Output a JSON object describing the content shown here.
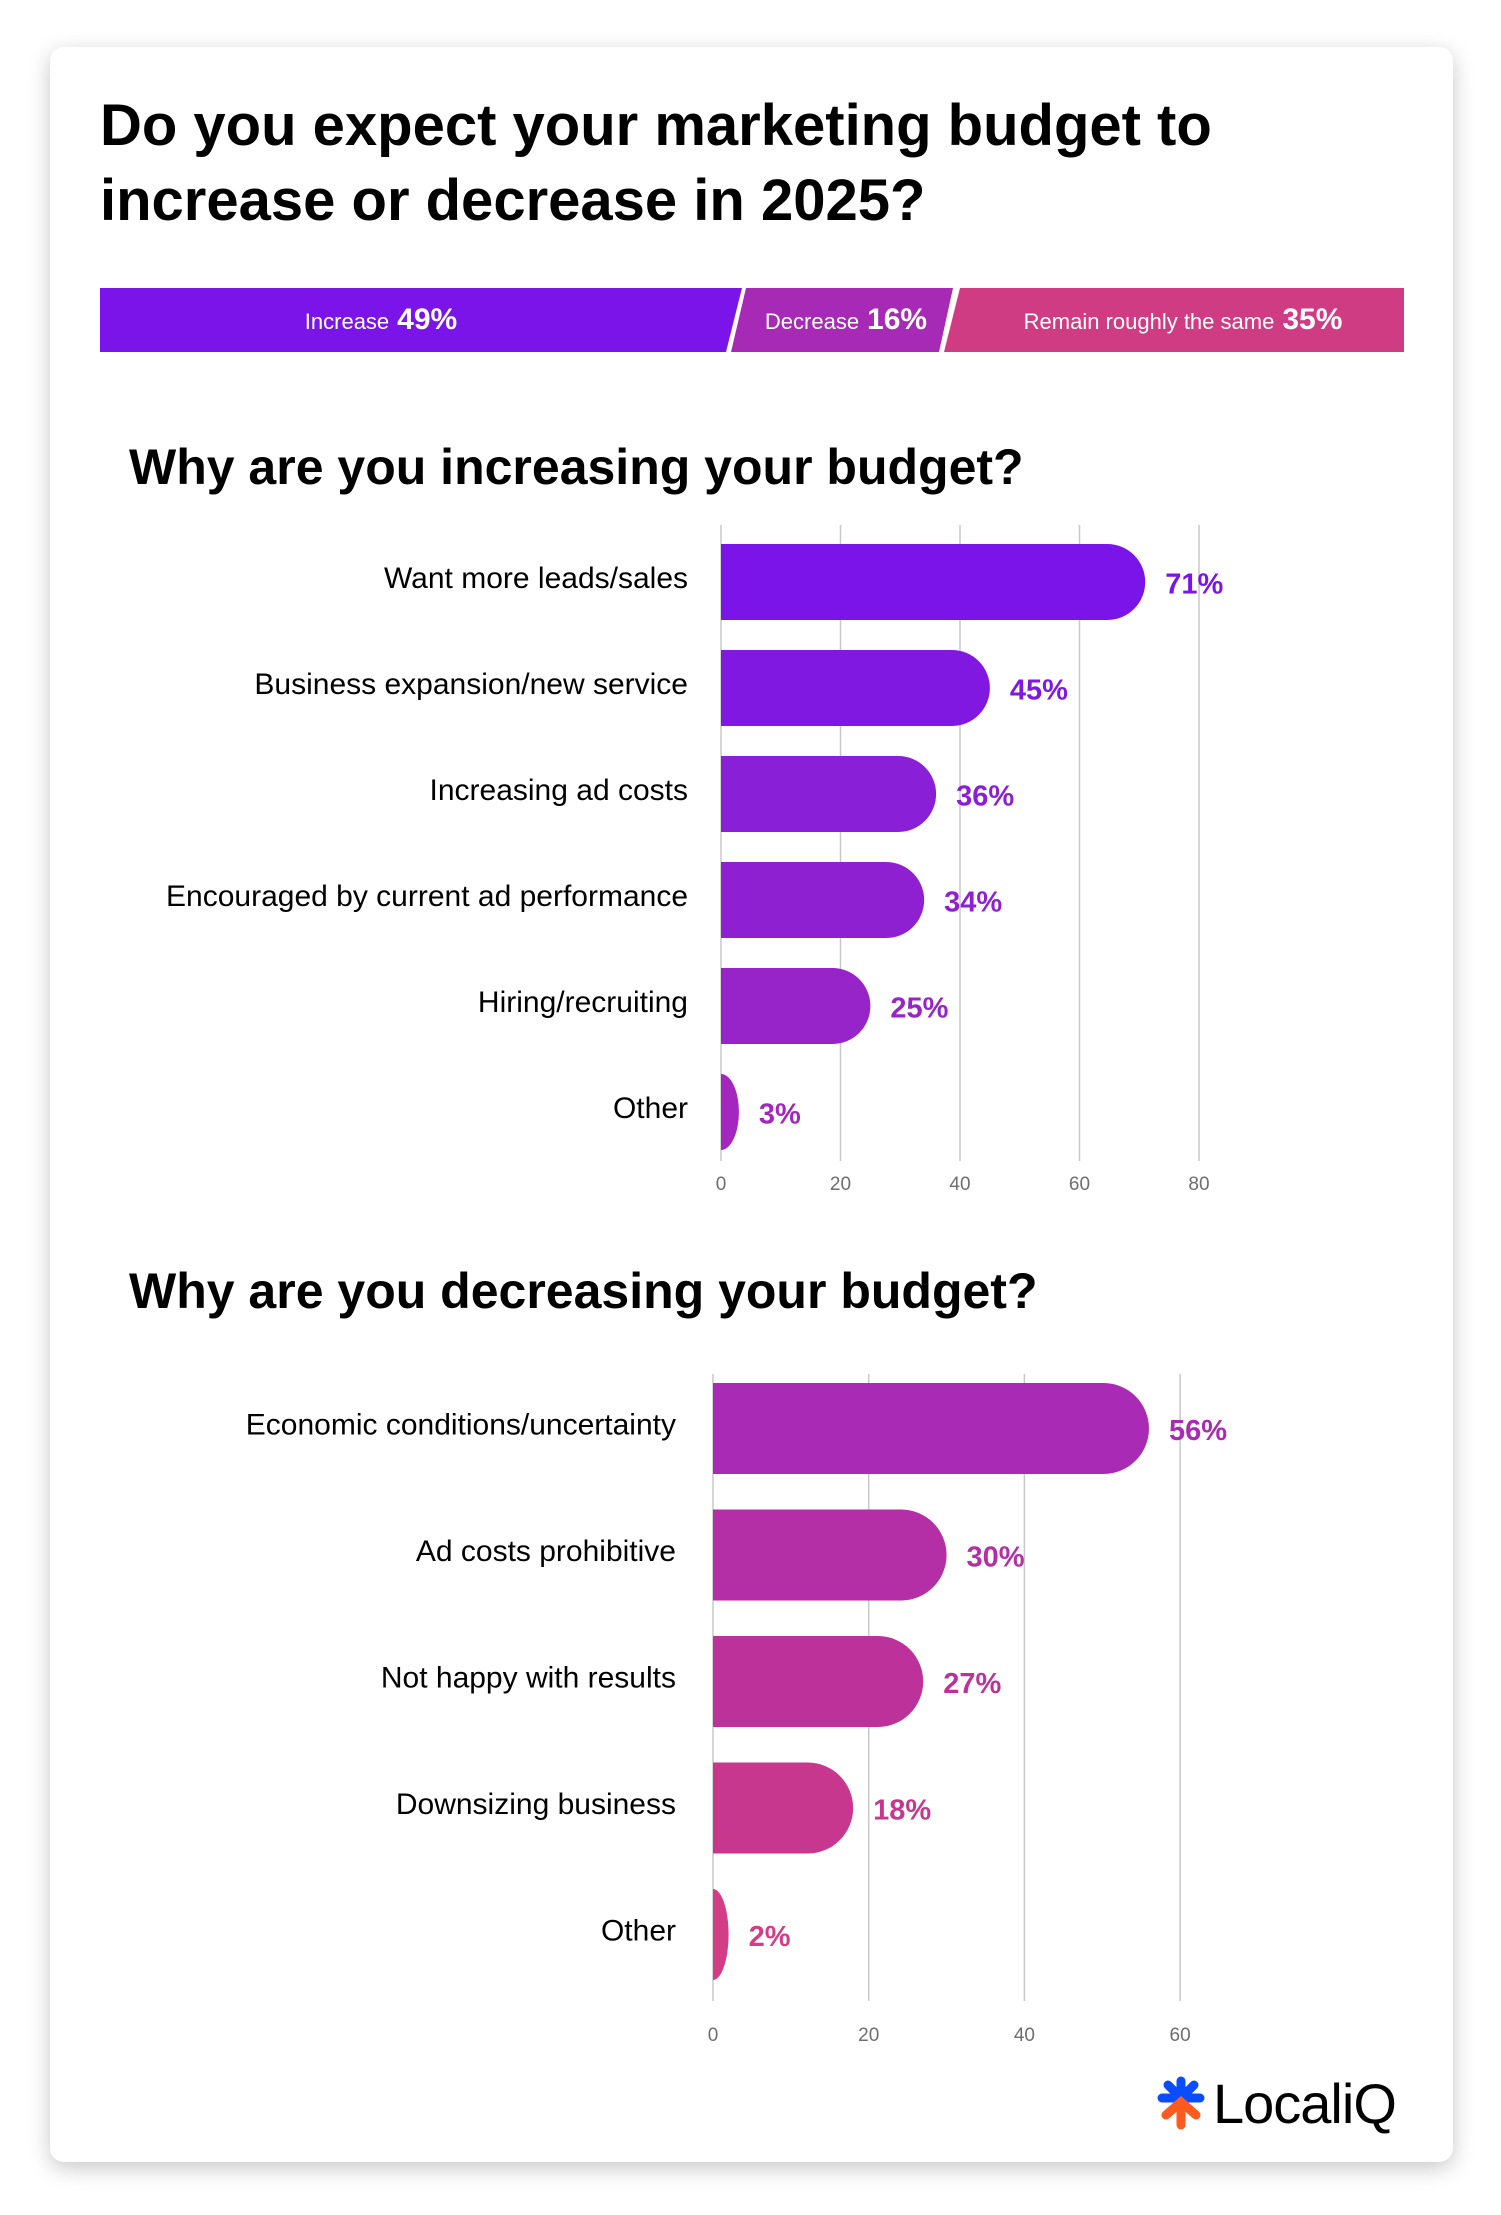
{
  "title": "Do you expect your marketing budget to increase or decrease in 2025?",
  "overall": {
    "segments": [
      {
        "label": "Increase",
        "value": "49%",
        "color": "#7b14e8"
      },
      {
        "label": "Decrease",
        "value": "16%",
        "color": "#a72ab6"
      },
      {
        "label": "Remain roughly the same",
        "value": "35%",
        "color": "#d03c84"
      }
    ]
  },
  "chart_data": [
    {
      "type": "bar",
      "orientation": "horizontal",
      "title": "Why are you increasing your budget?",
      "categories": [
        "Want more leads/sales",
        "Business expansion/new service",
        "Increasing ad costs",
        "Encouraged by current ad performance",
        "Hiring/recruiting",
        "Other"
      ],
      "values": [
        71,
        45,
        36,
        34,
        25,
        3
      ],
      "value_labels": [
        "71%",
        "45%",
        "36%",
        "34%",
        "25%",
        "3%"
      ],
      "xlim": [
        0,
        80
      ],
      "xticks": [
        "0",
        "20",
        "40",
        "60",
        "80"
      ],
      "grid": true,
      "colors": [
        "#7b14e8",
        "#8118e2",
        "#8a1fd8",
        "#8f20d2",
        "#9624c8",
        "#a526bf"
      ]
    },
    {
      "type": "bar",
      "orientation": "horizontal",
      "title": "Why are you decreasing your budget?",
      "categories": [
        "Economic conditions/uncertainty",
        "Ad costs prohibitive",
        "Not happy with results",
        "Downsizing business",
        "Other"
      ],
      "values": [
        56,
        30,
        27,
        18,
        2
      ],
      "value_labels": [
        "56%",
        "30%",
        "27%",
        "18%",
        "2%"
      ],
      "xlim": [
        0,
        60
      ],
      "xticks": [
        "0",
        "20",
        "40",
        "60"
      ],
      "grid": true,
      "colors": [
        "#a92ab4",
        "#b42ea5",
        "#bc329a",
        "#c7378e",
        "#d33d86"
      ]
    }
  ],
  "logo": {
    "text": "LocaliQ",
    "colors": {
      "top": "#0a4cff",
      "bottom": "#ff5a1f"
    }
  }
}
